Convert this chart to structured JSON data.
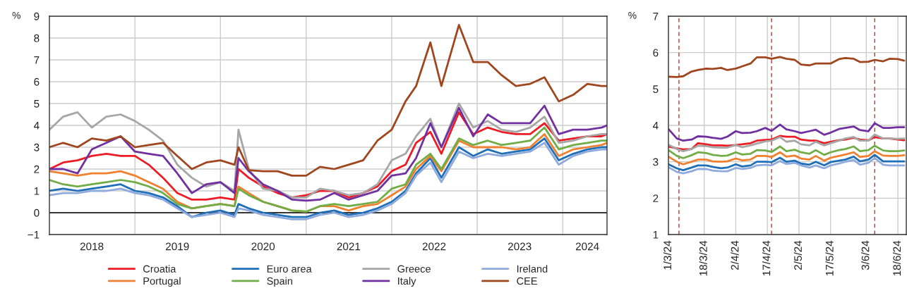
{
  "chart_data": [
    {
      "type": "line",
      "ylabel": "%",
      "grid": true,
      "legend": "bottom",
      "line_style": "solid",
      "x": [
        "2018-01-01",
        "2018-03-01",
        "2018-05-01",
        "2018-07-01",
        "2018-09-01",
        "2018-11-01",
        "2019-01-01",
        "2019-03-01",
        "2019-05-01",
        "2019-07-01",
        "2019-09-01",
        "2019-11-01",
        "2020-01-01",
        "2020-03-01",
        "2020-03-18",
        "2020-05-01",
        "2020-07-01",
        "2020-09-01",
        "2020-11-01",
        "2021-01-01",
        "2021-03-01",
        "2021-05-01",
        "2021-07-01",
        "2021-09-01",
        "2021-11-01",
        "2022-01-01",
        "2022-03-01",
        "2022-04-15",
        "2022-06-15",
        "2022-08-01",
        "2022-10-15",
        "2022-12-15",
        "2023-02-15",
        "2023-04-15",
        "2023-06-15",
        "2023-08-15",
        "2023-10-15",
        "2023-12-15",
        "2024-02-15",
        "2024-04-15",
        "2024-06-15",
        "2024-07-08"
      ],
      "series": [
        {
          "name": "Croatia",
          "color": "#ed1c24",
          "values": [
            2.0,
            2.3,
            2.4,
            2.6,
            2.7,
            2.6,
            2.6,
            2.2,
            1.6,
            0.9,
            0.6,
            0.6,
            0.7,
            0.6,
            2.0,
            1.6,
            1.2,
            0.9,
            0.7,
            0.8,
            1.0,
            1.0,
            0.7,
            0.9,
            1.2,
            1.9,
            2.2,
            3.2,
            3.7,
            2.7,
            4.6,
            3.6,
            3.9,
            3.7,
            3.6,
            3.6,
            4.1,
            3.3,
            3.4,
            3.5,
            3.5,
            3.6
          ]
        },
        {
          "name": "Euro area",
          "color": "#1f6fb8",
          "values": [
            1.0,
            1.1,
            1.0,
            1.1,
            1.2,
            1.3,
            1.0,
            0.9,
            0.7,
            0.3,
            -0.2,
            0.0,
            0.1,
            -0.1,
            0.4,
            0.2,
            0.0,
            -0.1,
            -0.2,
            -0.2,
            0.0,
            0.1,
            -0.1,
            0.0,
            0.2,
            0.5,
            1.0,
            1.8,
            2.5,
            1.6,
            3.0,
            2.6,
            2.9,
            2.7,
            2.8,
            2.9,
            3.4,
            2.4,
            2.7,
            2.9,
            3.0,
            3.0
          ]
        },
        {
          "name": "Greece",
          "color": "#a6a6a6",
          "values": [
            3.8,
            4.4,
            4.6,
            3.9,
            4.4,
            4.5,
            4.2,
            3.8,
            3.3,
            2.2,
            1.6,
            1.2,
            1.4,
            1.0,
            3.8,
            2.0,
            1.1,
            1.0,
            0.7,
            0.7,
            1.1,
            1.0,
            0.8,
            0.9,
            1.3,
            2.4,
            2.7,
            3.5,
            4.3,
            3.0,
            5.0,
            3.9,
            4.2,
            3.8,
            3.7,
            3.9,
            4.4,
            3.2,
            3.3,
            3.5,
            3.6,
            3.6
          ]
        },
        {
          "name": "Ireland",
          "color": "#8faadc",
          "values": [
            0.8,
            0.9,
            0.9,
            1.0,
            1.0,
            1.1,
            0.9,
            0.8,
            0.6,
            0.2,
            -0.2,
            -0.1,
            0.0,
            -0.2,
            0.2,
            0.1,
            -0.1,
            -0.2,
            -0.3,
            -0.3,
            -0.1,
            0.0,
            -0.2,
            -0.1,
            0.1,
            0.4,
            0.9,
            1.7,
            2.3,
            1.4,
            2.8,
            2.5,
            2.7,
            2.6,
            2.7,
            2.8,
            3.2,
            2.2,
            2.6,
            2.8,
            2.9,
            2.9
          ]
        },
        {
          "name": "Portugal",
          "color": "#f08030",
          "values": [
            1.9,
            1.8,
            1.7,
            1.8,
            1.8,
            1.9,
            1.7,
            1.4,
            1.1,
            0.5,
            0.2,
            0.3,
            0.4,
            0.3,
            1.2,
            0.9,
            0.5,
            0.3,
            0.1,
            0.05,
            0.3,
            0.3,
            0.1,
            0.3,
            0.4,
            0.8,
            1.2,
            2.0,
            2.6,
            1.9,
            3.3,
            3.0,
            3.0,
            3.0,
            2.9,
            3.0,
            3.6,
            2.6,
            2.9,
            3.0,
            3.1,
            3.2
          ]
        },
        {
          "name": "Spain",
          "color": "#70ad47",
          "values": [
            1.5,
            1.3,
            1.2,
            1.3,
            1.4,
            1.5,
            1.4,
            1.2,
            0.9,
            0.4,
            0.2,
            0.3,
            0.4,
            0.3,
            1.1,
            0.8,
            0.5,
            0.3,
            0.1,
            0.05,
            0.3,
            0.4,
            0.3,
            0.4,
            0.5,
            1.1,
            1.3,
            2.2,
            2.7,
            2.0,
            3.4,
            3.1,
            3.3,
            3.1,
            3.2,
            3.3,
            3.9,
            2.9,
            3.1,
            3.2,
            3.3,
            3.3
          ]
        },
        {
          "name": "Italy",
          "color": "#7030a0",
          "values": [
            2.0,
            2.0,
            1.8,
            2.9,
            3.2,
            3.5,
            2.8,
            2.7,
            2.6,
            1.8,
            0.9,
            1.3,
            1.4,
            0.9,
            2.5,
            1.9,
            1.3,
            1.0,
            0.6,
            0.55,
            0.6,
            0.9,
            0.6,
            0.8,
            1.0,
            1.7,
            1.8,
            2.5,
            4.1,
            3.0,
            4.8,
            3.5,
            4.5,
            4.1,
            4.1,
            4.1,
            4.9,
            3.6,
            3.8,
            3.8,
            3.9,
            4.0
          ]
        },
        {
          "name": "CEE",
          "color": "#a0461e",
          "values": [
            3.0,
            3.2,
            3.0,
            3.4,
            3.3,
            3.5,
            3.0,
            3.1,
            3.2,
            2.6,
            2.0,
            2.3,
            2.4,
            2.2,
            3.0,
            1.95,
            1.9,
            1.9,
            1.7,
            1.7,
            2.1,
            2.0,
            2.2,
            2.4,
            3.3,
            3.8,
            5.1,
            5.8,
            7.8,
            5.8,
            8.6,
            6.9,
            6.9,
            6.3,
            5.8,
            5.9,
            6.2,
            5.1,
            5.4,
            5.9,
            5.8,
            5.8
          ]
        }
      ],
      "xlim": [
        "2018-01-01",
        "2024-07-08"
      ],
      "xticks": [
        {
          "value": "2018-07-01",
          "label": "2018"
        },
        {
          "value": "2019-01-01",
          "label": null
        },
        {
          "value": "2019-07-01",
          "label": "2019"
        },
        {
          "value": "2020-01-01",
          "label": null
        },
        {
          "value": "2020-07-01",
          "label": "2020"
        },
        {
          "value": "2021-01-01",
          "label": null
        },
        {
          "value": "2021-07-01",
          "label": "2021"
        },
        {
          "value": "2022-01-01",
          "label": null
        },
        {
          "value": "2022-07-01",
          "label": "2022"
        },
        {
          "value": "2023-01-01",
          "label": null
        },
        {
          "value": "2023-07-01",
          "label": "2023"
        },
        {
          "value": "2024-01-01",
          "label": null
        },
        {
          "value": "2024-04-15",
          "label": "2024"
        }
      ],
      "ylim": [
        -1,
        9
      ],
      "yticks": [
        {
          "value": -1,
          "label": "−1"
        },
        0,
        1,
        2,
        3,
        4,
        5,
        6,
        7,
        8,
        9
      ],
      "ref_lines": [
        {
          "axis": "y",
          "value": 0,
          "color": "#000000"
        }
      ]
    },
    {
      "type": "line",
      "ylabel": "%",
      "grid": true,
      "line_style": "solid",
      "x": [
        "2024-03-01",
        "2024-03-05",
        "2024-03-08",
        "2024-03-12",
        "2024-03-15",
        "2024-03-19",
        "2024-03-22",
        "2024-03-26",
        "2024-03-29",
        "2024-04-02",
        "2024-04-05",
        "2024-04-09",
        "2024-04-12",
        "2024-04-16",
        "2024-04-19",
        "2024-04-23",
        "2024-04-26",
        "2024-04-30",
        "2024-05-03",
        "2024-05-07",
        "2024-05-10",
        "2024-05-14",
        "2024-05-17",
        "2024-05-21",
        "2024-05-24",
        "2024-05-28",
        "2024-05-31",
        "2024-06-04",
        "2024-06-07",
        "2024-06-11",
        "2024-06-14",
        "2024-06-18",
        "2024-06-21"
      ],
      "series": [
        {
          "color": "#ed1c24",
          "values": [
            3.42,
            3.37,
            3.34,
            3.35,
            3.51,
            3.48,
            3.45,
            3.45,
            3.44,
            3.46,
            3.48,
            3.51,
            3.58,
            3.6,
            3.61,
            3.71,
            3.69,
            3.69,
            3.61,
            3.58,
            3.58,
            3.51,
            3.55,
            3.59,
            3.61,
            3.66,
            3.61,
            3.59,
            3.68,
            3.64,
            3.64,
            3.61,
            3.59
          ]
        },
        {
          "color": "#1f6fb8",
          "values": [
            2.93,
            2.82,
            2.77,
            2.84,
            2.9,
            2.9,
            2.86,
            2.82,
            2.84,
            2.93,
            2.87,
            2.9,
            3.0,
            3.0,
            2.99,
            3.11,
            3.0,
            3.03,
            2.95,
            2.92,
            3.0,
            2.9,
            2.99,
            3.03,
            3.06,
            3.14,
            3.01,
            3.06,
            3.19,
            3.01,
            3.01,
            3.01,
            3.01
          ]
        },
        {
          "color": "#a6a6a6",
          "values": [
            3.47,
            3.35,
            3.29,
            3.35,
            3.44,
            3.43,
            3.4,
            3.39,
            3.39,
            3.46,
            3.4,
            3.45,
            3.5,
            3.56,
            3.58,
            3.68,
            3.55,
            3.58,
            3.48,
            3.45,
            3.55,
            3.45,
            3.51,
            3.58,
            3.64,
            3.68,
            3.58,
            3.58,
            3.75,
            3.64,
            3.64,
            3.63,
            3.64
          ]
        },
        {
          "color": "#8faadc",
          "values": [
            2.85,
            2.72,
            2.68,
            2.74,
            2.8,
            2.8,
            2.76,
            2.74,
            2.74,
            2.83,
            2.8,
            2.83,
            2.9,
            2.92,
            2.9,
            3.02,
            2.94,
            2.97,
            2.9,
            2.84,
            2.9,
            2.82,
            2.9,
            2.95,
            3.0,
            3.05,
            2.92,
            2.97,
            3.1,
            2.92,
            2.9,
            2.9,
            2.9
          ]
        },
        {
          "color": "#f08030",
          "values": [
            3.14,
            3.0,
            2.93,
            3.0,
            3.06,
            3.06,
            3.01,
            3.0,
            3.01,
            3.09,
            3.04,
            3.06,
            3.16,
            3.16,
            3.13,
            3.26,
            3.14,
            3.17,
            3.09,
            3.06,
            3.16,
            3.03,
            3.11,
            3.16,
            3.2,
            3.26,
            3.13,
            3.16,
            3.29,
            3.17,
            3.16,
            3.16,
            3.18
          ]
        },
        {
          "color": "#70ad47",
          "values": [
            3.32,
            3.16,
            3.1,
            3.18,
            3.26,
            3.24,
            3.19,
            3.16,
            3.17,
            3.26,
            3.2,
            3.22,
            3.32,
            3.31,
            3.27,
            3.42,
            3.29,
            3.33,
            3.26,
            3.22,
            3.32,
            3.19,
            3.26,
            3.32,
            3.35,
            3.42,
            3.29,
            3.32,
            3.44,
            3.31,
            3.29,
            3.29,
            3.31
          ]
        },
        {
          "color": "#7030a0",
          "values": [
            3.9,
            3.64,
            3.58,
            3.61,
            3.7,
            3.69,
            3.66,
            3.63,
            3.69,
            3.84,
            3.79,
            3.8,
            3.84,
            3.93,
            3.85,
            4.02,
            3.89,
            3.84,
            3.79,
            3.84,
            3.88,
            3.74,
            3.8,
            3.9,
            3.93,
            3.97,
            3.87,
            3.84,
            4.06,
            3.93,
            3.93,
            3.95,
            3.95
          ]
        },
        {
          "color": "#a0461e",
          "values": [
            5.34,
            5.33,
            5.35,
            5.48,
            5.52,
            5.56,
            5.55,
            5.58,
            5.52,
            5.56,
            5.62,
            5.7,
            5.87,
            5.87,
            5.83,
            5.88,
            5.83,
            5.8,
            5.67,
            5.65,
            5.7,
            5.7,
            5.7,
            5.82,
            5.85,
            5.83,
            5.74,
            5.75,
            5.8,
            5.76,
            5.83,
            5.82,
            5.78
          ]
        }
      ],
      "xlim": [
        "2024-03-01",
        "2024-06-22"
      ],
      "xticks": [
        {
          "value": "2024-03-01",
          "label": "1/3/24"
        },
        {
          "value": "2024-03-18",
          "label": "18/3/24"
        },
        {
          "value": "2024-04-02",
          "label": "2/4/24"
        },
        {
          "value": "2024-04-17",
          "label": "17/4/24"
        },
        {
          "value": "2024-05-02",
          "label": "2/5/24"
        },
        {
          "value": "2024-05-17",
          "label": "17/5/24"
        },
        {
          "value": "2024-06-03",
          "label": "3/6/24"
        },
        {
          "value": "2024-06-18",
          "label": "18/6/24"
        }
      ],
      "ylim": [
        1,
        7
      ],
      "yticks": [
        1,
        2,
        3,
        4,
        5,
        6,
        7
      ],
      "ref_lines": [
        {
          "axis": "x",
          "value": "2024-03-06",
          "color": "#c0392b",
          "line_style": "dashed"
        },
        {
          "axis": "x",
          "value": "2024-04-19",
          "color": "#c0392b",
          "line_style": "dashed"
        },
        {
          "axis": "x",
          "value": "2024-06-07",
          "color": "#c0392b",
          "line_style": "dashed"
        }
      ]
    }
  ]
}
